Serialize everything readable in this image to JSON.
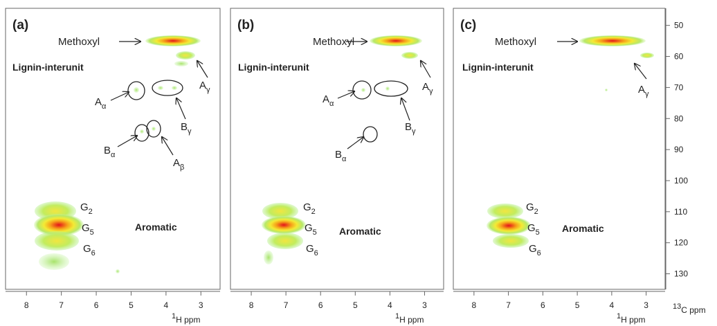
{
  "chart_data": [
    {
      "type": "hsqc",
      "panel_label": "(a)",
      "region_labels": [
        "Lignin-interunit",
        "Aromatic"
      ],
      "annotations": [
        {
          "main": "Methoxyl"
        },
        {
          "main": "A",
          "sub": "γ"
        },
        {
          "main": "A",
          "sub": "α"
        },
        {
          "main": "B",
          "sub": "γ"
        },
        {
          "main": "B",
          "sub": "α"
        },
        {
          "main": "A",
          "sub": "β"
        },
        {
          "main": "G",
          "sub": "2"
        },
        {
          "main": "G",
          "sub": "5"
        },
        {
          "main": "G",
          "sub": "6"
        }
      ],
      "xlabel": {
        "sup": "1",
        "text": "H ppm"
      },
      "xlim": [
        8.6,
        2.45
      ],
      "xticks": [
        8,
        7,
        6,
        5,
        4,
        3
      ]
    },
    {
      "type": "hsqc",
      "panel_label": "(b)",
      "region_labels": [
        "Lignin-interunit",
        "Aromatic"
      ],
      "annotations": [
        {
          "main": "Methoxyl"
        },
        {
          "main": "A",
          "sub": "γ"
        },
        {
          "main": "A",
          "sub": "α"
        },
        {
          "main": "B",
          "sub": "γ"
        },
        {
          "main": "B",
          "sub": "α"
        },
        {
          "main": "G",
          "sub": "2"
        },
        {
          "main": "G",
          "sub": "5"
        },
        {
          "main": "G",
          "sub": "6"
        }
      ],
      "xlabel": {
        "sup": "1",
        "text": "H ppm"
      },
      "xlim": [
        8.6,
        2.45
      ],
      "xticks": [
        8,
        7,
        6,
        5,
        4,
        3
      ]
    },
    {
      "type": "hsqc",
      "panel_label": "(c)",
      "region_labels": [
        "Lignin-interunit",
        "Aromatic"
      ],
      "annotations": [
        {
          "main": "Methoxyl"
        },
        {
          "main": "A",
          "sub": "γ"
        },
        {
          "main": "G",
          "sub": "2"
        },
        {
          "main": "G",
          "sub": "5"
        },
        {
          "main": "G",
          "sub": "6"
        }
      ],
      "xlabel": {
        "sup": "1",
        "text": "H ppm"
      },
      "xlim": [
        8.6,
        2.45
      ],
      "xticks": [
        8,
        7,
        6,
        5,
        4,
        3
      ],
      "ylabel": {
        "sup": "13",
        "text": "C ppm"
      },
      "ylim": [
        44.5,
        135
      ],
      "y_reversed": true,
      "yticks": [
        50,
        60,
        70,
        80,
        90,
        100,
        110,
        120,
        130
      ]
    }
  ]
}
